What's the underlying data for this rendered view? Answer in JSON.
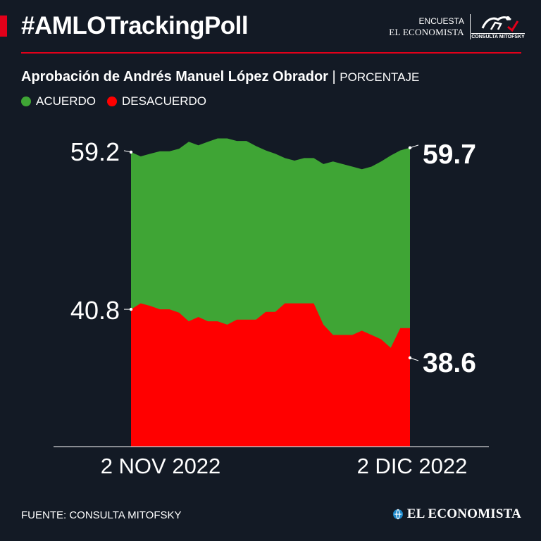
{
  "header": {
    "hashtag": "#AMLOTrackingPoll",
    "brand_line1": "ENCUESTA",
    "brand_line2": "EL ECONOMISTA",
    "partner_logo": "CONSULTA MITOFSKY"
  },
  "subtitle": {
    "title": "Aprobación de Andrés Manuel López Obrador",
    "separator": "|",
    "unit": "PORCENTAJE"
  },
  "legend": [
    {
      "label": "ACUERDO",
      "color": "#3fa535"
    },
    {
      "label": "DESACUERDO",
      "color": "#ff0000"
    }
  ],
  "chart_data": {
    "type": "area",
    "x_labels": [
      "2 NOV 2022",
      "2 DIC 2022"
    ],
    "series": [
      {
        "name": "ACUERDO",
        "color": "#3fa535",
        "values": [
          59.2,
          58.7,
          59.0,
          59.3,
          59.3,
          59.6,
          60.4,
          60.0,
          60.4,
          60.8,
          60.8,
          60.5,
          60.5,
          59.9,
          59.4,
          59.0,
          58.5,
          58.2,
          58.5,
          58.5,
          57.8,
          58.1,
          57.8,
          57.5,
          57.2,
          57.5,
          58.1,
          58.8,
          59.4,
          59.7
        ],
        "start_label": "59.2",
        "end_label": "59.7"
      },
      {
        "name": "DESACUERDO",
        "color": "#ff0000",
        "values": [
          40.8,
          41.5,
          41.2,
          40.8,
          40.8,
          40.4,
          39.4,
          39.9,
          39.4,
          39.4,
          39.0,
          39.6,
          39.6,
          39.6,
          40.5,
          40.5,
          41.5,
          41.5,
          41.5,
          41.5,
          39.0,
          37.8,
          37.8,
          37.8,
          38.3,
          37.8,
          37.3,
          36.3,
          38.6,
          38.6
        ],
        "start_label": "40.8",
        "end_label": "38.6"
      }
    ],
    "colors": {
      "acuerdo": "#3fa535",
      "desacuerdo": "#ff0000",
      "background": "#131a25"
    }
  },
  "footer": {
    "source": "FUENTE: CONSULTA MITOFSKY",
    "brand": "EL ECONOMISTA"
  }
}
